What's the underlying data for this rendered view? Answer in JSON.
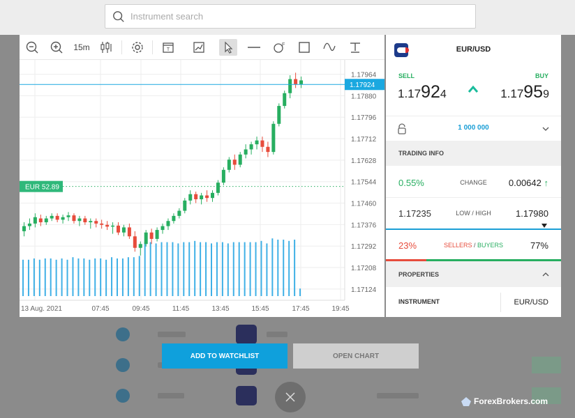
{
  "search": {
    "placeholder": "Instrument search"
  },
  "toolbar": {
    "timeframe": "15m",
    "icons": [
      "zoom-out-icon",
      "zoom-in-icon",
      "candlestick-icon",
      "gear-icon",
      "template-icon",
      "image-icon",
      "cursor-icon",
      "horizontal-line-icon",
      "fibonacci-icon",
      "rectangle-icon",
      "trend-icon",
      "text-icon"
    ]
  },
  "chart_data": {
    "type": "candlestick",
    "y_ticks": [
      "1.17964",
      "1.17880",
      "1.17796",
      "1.17712",
      "1.17628",
      "1.17544",
      "1.17460",
      "1.17376",
      "1.17292",
      "1.17208",
      "1.17124"
    ],
    "ylim": [
      1.1708,
      1.1802
    ],
    "x_ticks": [
      "13 Aug. 2021",
      "07:45",
      "09:45",
      "11:45",
      "13:45",
      "15:45",
      "17:45",
      "19:45"
    ],
    "current_price_label": "1.17924",
    "current_price": 1.17924,
    "sentiment_label": "EUR 52.89",
    "sentiment_level": 1.17525,
    "colors": {
      "up": "#27ae60",
      "down": "#e74c3c",
      "volume": "#3fb0e6",
      "price_line": "#1aa8e0"
    },
    "candles": [
      [
        1.1735,
        1.17385,
        1.1733,
        1.1737
      ],
      [
        1.1737,
        1.174,
        1.17355,
        1.1738
      ],
      [
        1.1738,
        1.1742,
        1.17365,
        1.17405
      ],
      [
        1.174,
        1.17415,
        1.1737,
        1.17385
      ],
      [
        1.17385,
        1.1741,
        1.17375,
        1.174
      ],
      [
        1.174,
        1.1742,
        1.1739,
        1.1741
      ],
      [
        1.1741,
        1.1742,
        1.17385,
        1.17395
      ],
      [
        1.17395,
        1.17415,
        1.1738,
        1.17405
      ],
      [
        1.17405,
        1.17425,
        1.1739,
        1.17412
      ],
      [
        1.17412,
        1.1742,
        1.1738,
        1.1739
      ],
      [
        1.1739,
        1.1741,
        1.1737,
        1.174
      ],
      [
        1.174,
        1.1741,
        1.17375,
        1.17385
      ],
      [
        1.17385,
        1.174,
        1.1736,
        1.1739
      ],
      [
        1.1739,
        1.174,
        1.17365,
        1.1738
      ],
      [
        1.1738,
        1.17395,
        1.1736,
        1.17375
      ],
      [
        1.17375,
        1.1739,
        1.17355,
        1.17368
      ],
      [
        1.17368,
        1.17385,
        1.1734,
        1.17372
      ],
      [
        1.17372,
        1.17385,
        1.17335,
        1.17345
      ],
      [
        1.17345,
        1.17375,
        1.1733,
        1.17365
      ],
      [
        1.17365,
        1.1738,
        1.1732,
        1.1733
      ],
      [
        1.1733,
        1.1735,
        1.1727,
        1.17285
      ],
      [
        1.17285,
        1.1731,
        1.17255,
        1.173
      ],
      [
        1.173,
        1.17355,
        1.1729,
        1.17345
      ],
      [
        1.17345,
        1.1736,
        1.173,
        1.1732
      ],
      [
        1.1732,
        1.17365,
        1.1731,
        1.17355
      ],
      [
        1.17355,
        1.1738,
        1.1734,
        1.1737
      ],
      [
        1.1737,
        1.174,
        1.17355,
        1.1739
      ],
      [
        1.1739,
        1.1742,
        1.1738,
        1.1741
      ],
      [
        1.1741,
        1.1744,
        1.174,
        1.1743
      ],
      [
        1.1743,
        1.1748,
        1.1742,
        1.1747
      ],
      [
        1.1747,
        1.1751,
        1.17455,
        1.17495
      ],
      [
        1.17495,
        1.17505,
        1.1746,
        1.17475
      ],
      [
        1.17475,
        1.175,
        1.17455,
        1.1749
      ],
      [
        1.1749,
        1.1751,
        1.17465,
        1.1748
      ],
      [
        1.1748,
        1.1751,
        1.17465,
        1.175
      ],
      [
        1.175,
        1.1755,
        1.1749,
        1.1754
      ],
      [
        1.1754,
        1.176,
        1.1753,
        1.1759
      ],
      [
        1.1759,
        1.1764,
        1.1758,
        1.1763
      ],
      [
        1.1763,
        1.1765,
        1.1759,
        1.1761
      ],
      [
        1.1761,
        1.1766,
        1.176,
        1.1765
      ],
      [
        1.1765,
        1.1769,
        1.17635,
        1.1767
      ],
      [
        1.1767,
        1.177,
        1.1765,
        1.1769
      ],
      [
        1.1769,
        1.1772,
        1.1767,
        1.17705
      ],
      [
        1.17705,
        1.1772,
        1.1766,
        1.1768
      ],
      [
        1.1768,
        1.177,
        1.1764,
        1.1766
      ],
      [
        1.1766,
        1.1778,
        1.1765,
        1.1777
      ],
      [
        1.1777,
        1.1785,
        1.1776,
        1.1784
      ],
      [
        1.1784,
        1.179,
        1.1783,
        1.1789
      ],
      [
        1.1789,
        1.1796,
        1.1787,
        1.17945
      ],
      [
        1.17945,
        1.1797,
        1.1791,
        1.17925
      ],
      [
        1.17925,
        1.17955,
        1.1791,
        1.1794
      ]
    ],
    "volumes": [
      0.58,
      0.58,
      0.6,
      0.58,
      0.6,
      0.6,
      0.58,
      0.6,
      0.58,
      0.62,
      0.6,
      0.6,
      0.58,
      0.6,
      0.6,
      0.58,
      0.62,
      0.6,
      0.6,
      0.62,
      0.62,
      0.64,
      0.86,
      0.86,
      0.84,
      0.86,
      0.86,
      0.86,
      0.84,
      0.86,
      0.86,
      0.88,
      0.86,
      0.86,
      0.84,
      0.86,
      0.86,
      0.84,
      0.86,
      0.86,
      0.86,
      0.86,
      0.86,
      0.88,
      0.84,
      0.92,
      0.9,
      0.9,
      0.88,
      0.9,
      0.12
    ]
  },
  "side": {
    "pair": "EUR/USD",
    "sell_label": "SELL",
    "buy_label": "BUY",
    "sell_price": {
      "pre": "1.17",
      "big": "92",
      "small": "4"
    },
    "buy_price": {
      "pre": "1.17",
      "big": "95",
      "small": "9"
    },
    "quantity": "1 000 000",
    "trading_info": "TRADING INFO",
    "change_pct": "0.55%",
    "change_label": "CHANGE",
    "change_value": "0.00642",
    "low": "1.17235",
    "low_high_label": "LOW / HIGH",
    "high": "1.17980",
    "sellers_pct": "23%",
    "sellers_label": "SELLERS",
    "slash": " / ",
    "buyers_label": "BUYERS",
    "buyers_pct": "77%",
    "sellers_fraction": 0.23,
    "properties": "PROPERTIES",
    "instrument_label": "INSTRUMENT",
    "instrument_value": "EUR/USD"
  },
  "buttons": {
    "add": "ADD TO WATCHLIST",
    "open": "OPEN CHART"
  },
  "watermark": "ForexBrokers.com"
}
